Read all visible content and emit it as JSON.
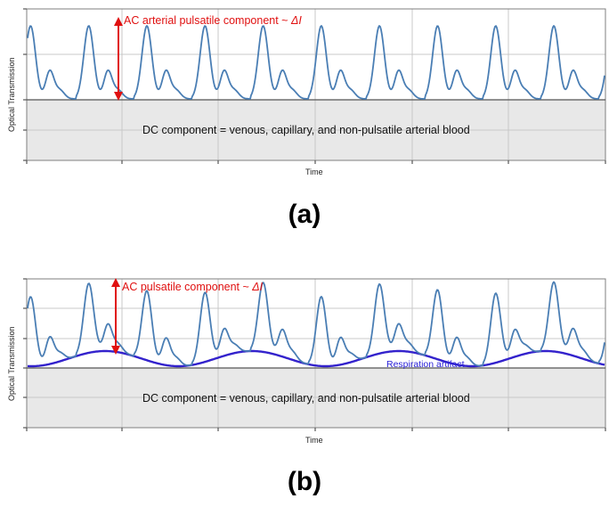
{
  "panels": [
    {
      "id": "a",
      "caption": "(a)",
      "ylabel": "Optical Transmission",
      "xlabel": "Time",
      "dc_label": "DC   component = venous, capillary, and non-pulsatile arterial blood",
      "ac_label": "AC arterial pulsatile component ~ ",
      "ac_symbol": "ΔI",
      "respiration_label": null
    },
    {
      "id": "b",
      "caption": "(b)",
      "ylabel": "Optical Transmission",
      "xlabel": "Time",
      "dc_label": "DC   component = venous, capillary, and non-pulsatile arterial blood",
      "ac_label": "AC pulsatile component ~ ",
      "ac_symbol": "ΔI",
      "respiration_label": "Respiration artifact"
    }
  ],
  "colors": {
    "waveform": "#4a7eb4",
    "respiration": "#3322cc",
    "annotation": "#e01010",
    "dc_fill": "#e8e8e8"
  }
}
